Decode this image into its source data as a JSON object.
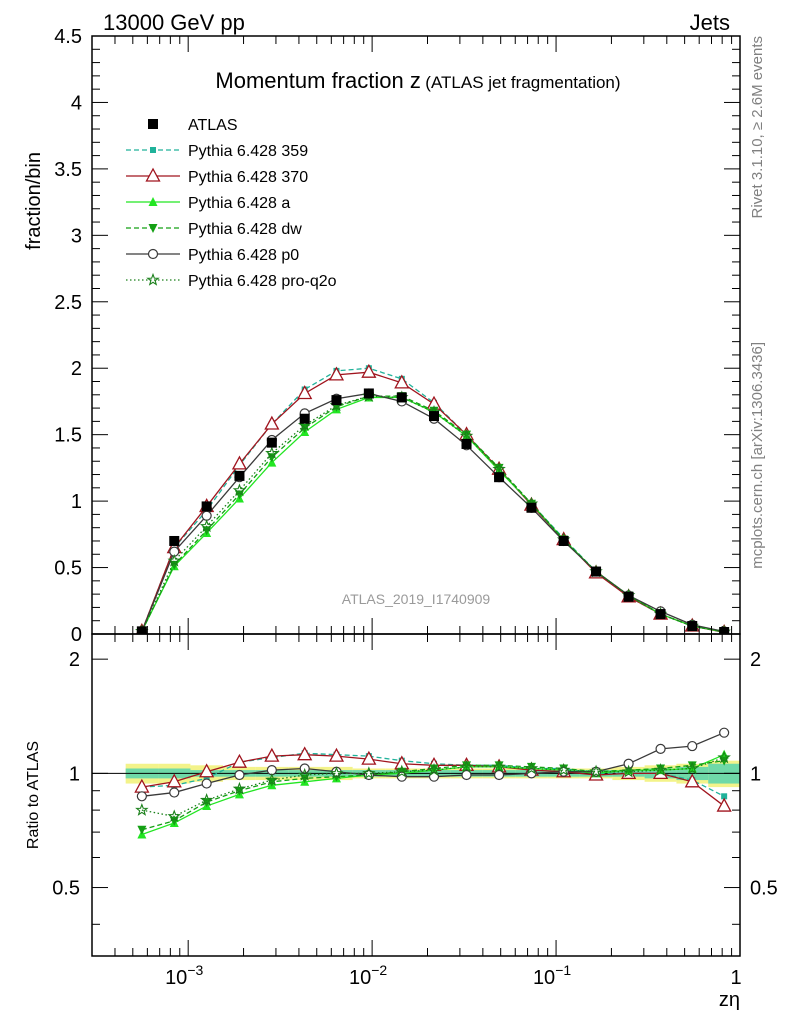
{
  "header": {
    "left": "13000 GeV pp",
    "right": "Jets"
  },
  "side_labels": {
    "rivet": "Rivet 3.1.10, ≥ 2.6M events",
    "mcplots": "mcplots.cern.ch [arXiv:1306.3436]"
  },
  "chart_data": {
    "type": "line",
    "title": "Momentum fraction z",
    "title_sub": "(ATLAS jet fragmentation)",
    "watermark": "ATLAS_2019_I1740909",
    "xlabel": "zη",
    "ylabel_main": "fraction/bin",
    "ylabel_ratio": "Ratio to ATLAS",
    "x_scale": "log",
    "xlim": [
      0.0003,
      1
    ],
    "ylim_main": [
      0,
      4.5
    ],
    "ylim_ratio": [
      0.33,
      2.33
    ],
    "x_tick_labels": [
      {
        "base": "10",
        "exp": "−3"
      },
      {
        "base": "10",
        "exp": "−2"
      },
      {
        "base": "10",
        "exp": "−1"
      },
      {
        "base": "1",
        "exp": ""
      }
    ],
    "y_tick_labels_main": [
      "0",
      "0.5",
      "1",
      "1.5",
      "2",
      "2.5",
      "3",
      "3.5",
      "4",
      "4.5"
    ],
    "y_tick_labels_ratio": [
      "0.5",
      "1",
      "2"
    ],
    "legend_position": "top-left",
    "x": [
      0.00056,
      0.00084,
      0.00126,
      0.0019,
      0.00285,
      0.0043,
      0.0064,
      0.0096,
      0.0145,
      0.0217,
      0.0326,
      0.049,
      0.0735,
      0.11,
      0.165,
      0.248,
      0.37,
      0.55,
      0.82
    ],
    "reference": {
      "name": "ATLAS",
      "color": "#000000",
      "values": [
        0.02,
        0.7,
        0.96,
        1.19,
        1.44,
        1.62,
        1.76,
        1.81,
        1.78,
        1.64,
        1.43,
        1.18,
        0.95,
        0.7,
        0.47,
        0.28,
        0.15,
        0.06,
        0.015
      ]
    },
    "series": [
      {
        "name": "Pythia 6.428 359",
        "color": "#20b29a",
        "dash": "5,3",
        "marker": "square-small",
        "values": [
          0.02,
          0.65,
          0.93,
          1.27,
          1.58,
          1.84,
          1.98,
          2.0,
          1.92,
          1.74,
          1.5,
          1.24,
          0.98,
          0.72,
          0.47,
          0.28,
          0.15,
          0.06,
          0.013
        ]
      },
      {
        "name": "Pythia 6.428 370",
        "color": "#a0141e",
        "dash": "",
        "marker": "triangle-open",
        "values": [
          0.02,
          0.65,
          0.96,
          1.28,
          1.58,
          1.81,
          1.95,
          1.97,
          1.89,
          1.73,
          1.5,
          1.24,
          0.97,
          0.71,
          0.46,
          0.28,
          0.15,
          0.06,
          0.012
        ]
      },
      {
        "name": "Pythia 6.428 a",
        "color": "#22e622",
        "dash": "",
        "marker": "triangle-filled",
        "values": [
          0.02,
          0.51,
          0.76,
          1.02,
          1.29,
          1.52,
          1.69,
          1.78,
          1.78,
          1.67,
          1.49,
          1.23,
          0.98,
          0.71,
          0.47,
          0.29,
          0.15,
          0.06,
          0.015
        ]
      },
      {
        "name": "Pythia 6.428 dw",
        "color": "#14a014",
        "dash": "5,3",
        "marker": "triangle-down",
        "values": [
          0.02,
          0.52,
          0.78,
          1.05,
          1.33,
          1.55,
          1.71,
          1.79,
          1.79,
          1.68,
          1.5,
          1.25,
          0.98,
          0.71,
          0.47,
          0.29,
          0.15,
          0.06,
          0.015
        ]
      },
      {
        "name": "Pythia 6.428 p0",
        "color": "#3a3a3a",
        "dash": "",
        "marker": "circle-open",
        "values": [
          0.02,
          0.62,
          0.89,
          1.18,
          1.46,
          1.66,
          1.77,
          1.81,
          1.75,
          1.62,
          1.42,
          1.18,
          0.95,
          0.7,
          0.47,
          0.29,
          0.17,
          0.07,
          0.019
        ]
      },
      {
        "name": "Pythia 6.428 pro-q2o",
        "color": "#1a801a",
        "dash": "1.5,2.5",
        "marker": "star",
        "values": [
          0.02,
          0.55,
          0.81,
          1.08,
          1.36,
          1.57,
          1.72,
          1.79,
          1.78,
          1.67,
          1.49,
          1.24,
          0.98,
          0.71,
          0.47,
          0.29,
          0.15,
          0.06,
          0.016
        ]
      }
    ],
    "ratios": [
      [
        0.92,
        0.93,
        0.97,
        1.07,
        1.1,
        1.13,
        1.12,
        1.11,
        1.08,
        1.06,
        1.05,
        1.05,
        1.03,
        1.03,
        1.0,
        1.0,
        1.0,
        0.96,
        0.87
      ],
      [
        0.92,
        0.95,
        1.01,
        1.07,
        1.11,
        1.12,
        1.11,
        1.09,
        1.06,
        1.05,
        1.05,
        1.04,
        1.02,
        1.01,
        0.99,
        1.0,
        1.0,
        0.95,
        0.82
      ],
      [
        0.69,
        0.74,
        0.82,
        0.88,
        0.93,
        0.95,
        0.97,
        0.99,
        1.0,
        1.02,
        1.04,
        1.04,
        1.03,
        1.02,
        1.0,
        1.02,
        1.02,
        1.03,
        1.12
      ],
      [
        0.71,
        0.75,
        0.84,
        0.9,
        0.95,
        0.97,
        0.98,
        0.99,
        1.01,
        1.03,
        1.05,
        1.05,
        1.04,
        1.03,
        1.01,
        1.02,
        1.03,
        1.05,
        1.08
      ],
      [
        0.87,
        0.89,
        0.94,
        0.99,
        1.02,
        1.03,
        1.01,
        0.99,
        0.98,
        0.98,
        0.99,
        0.99,
        1.0,
        1.01,
        1.01,
        1.06,
        1.16,
        1.18,
        1.28
      ],
      [
        0.8,
        0.77,
        0.85,
        0.91,
        0.96,
        0.99,
        1.0,
        1.0,
        1.01,
        1.02,
        1.04,
        1.04,
        1.03,
        1.02,
        1.01,
        1.01,
        1.02,
        1.03,
        1.1
      ]
    ],
    "uncertainty_band": {
      "stat_color": "#6fd9a8",
      "total_color": "#f3f38a",
      "stat_half_width": [
        0.03,
        0.03,
        0.02,
        0.02,
        0.02,
        0.02,
        0.02,
        0.02,
        0.02,
        0.02,
        0.02,
        0.02,
        0.02,
        0.02,
        0.02,
        0.02,
        0.03,
        0.04,
        0.06
      ],
      "total_half_width": [
        0.06,
        0.06,
        0.05,
        0.04,
        0.04,
        0.04,
        0.04,
        0.03,
        0.03,
        0.03,
        0.03,
        0.03,
        0.03,
        0.03,
        0.03,
        0.04,
        0.05,
        0.06,
        0.08
      ]
    }
  }
}
